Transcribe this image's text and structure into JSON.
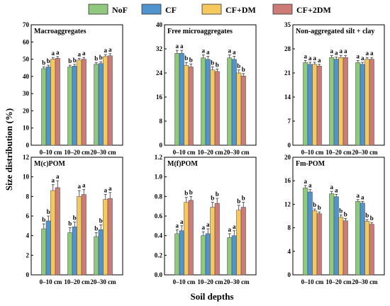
{
  "chart_data": {
    "type": "bar",
    "ylabel": "Size distribution (%)",
    "xlabel": "Soil depths",
    "categories": [
      "0–10 cm",
      "10–20 cm",
      "20–30 cm"
    ],
    "legend": {
      "placement": "top",
      "entries": [
        {
          "name": "NoF",
          "color": "#8fc97d"
        },
        {
          "name": "CF",
          "color": "#4f93cf"
        },
        {
          "name": "CF+DM",
          "color": "#f5c95e"
        },
        {
          "name": "CF+2DM",
          "color": "#cd7b76"
        }
      ]
    },
    "grid": false,
    "panels": [
      {
        "title": "Macroaggregates",
        "ylim": [
          0,
          70
        ],
        "yticks": [
          "0",
          "10",
          "20",
          "30",
          "40",
          "50",
          "60",
          "70"
        ],
        "values": [
          [
            44.5,
            45.5,
            50,
            50.5
          ],
          [
            45.5,
            46,
            49.5,
            50
          ],
          [
            47,
            47.5,
            51.5,
            52
          ]
        ],
        "errors": [
          [
            1,
            1,
            1,
            1
          ],
          [
            1,
            1,
            1,
            1
          ],
          [
            1,
            1,
            1.2,
            1.2
          ]
        ],
        "letters": [
          [
            "b",
            "b",
            "a",
            "a"
          ],
          [
            "b",
            "b",
            "a",
            "a"
          ],
          [
            "b",
            "b",
            "a",
            "a"
          ]
        ]
      },
      {
        "title": "Free microaggregates",
        "ylim": [
          0,
          40
        ],
        "yticks": [
          "0",
          "8",
          "16",
          "24",
          "32",
          "40"
        ],
        "values": [
          [
            30.5,
            30.5,
            26.5,
            26
          ],
          [
            29,
            28.5,
            25,
            24.5
          ],
          [
            29,
            28.5,
            24,
            23
          ]
        ],
        "errors": [
          [
            1,
            1,
            1,
            1
          ],
          [
            1,
            1,
            1,
            0.8
          ],
          [
            1,
            1,
            1,
            0.8
          ]
        ],
        "letters": [
          [
            "a",
            "a",
            "b",
            "b"
          ],
          [
            "a",
            "a",
            "b",
            "b"
          ],
          [
            "a",
            "a",
            "b",
            "b"
          ]
        ]
      },
      {
        "title": "Non-aggregated silt + clay",
        "ylim": [
          0,
          35
        ],
        "yticks": [
          "0",
          "7",
          "14",
          "21",
          "28",
          "35"
        ],
        "values": [
          [
            24,
            23.5,
            23.5,
            23
          ],
          [
            25.5,
            25,
            25.5,
            25.5
          ],
          [
            24,
            23.5,
            25,
            25
          ]
        ],
        "errors": [
          [
            0.6,
            0.6,
            0.6,
            0.5
          ],
          [
            0.6,
            0.6,
            0.6,
            0.6
          ],
          [
            0.6,
            0.6,
            0.5,
            0.5
          ]
        ],
        "letters": [
          [
            "a",
            "a",
            "a",
            "a"
          ],
          [
            "a",
            "a",
            "a",
            "a"
          ],
          [
            "a",
            "a",
            "a",
            "a"
          ]
        ]
      },
      {
        "title": "M(c)POM",
        "ylim": [
          0,
          12
        ],
        "yticks": [
          "0",
          "2",
          "4",
          "6",
          "8",
          "10",
          "12"
        ],
        "values": [
          [
            4.7,
            5.5,
            8.6,
            8.9
          ],
          [
            4.3,
            4.9,
            8,
            8.2
          ],
          [
            3.9,
            4.6,
            7.7,
            7.8
          ]
        ],
        "errors": [
          [
            0.5,
            0.5,
            0.6,
            0.7
          ],
          [
            0.5,
            0.5,
            0.6,
            0.5
          ],
          [
            0.4,
            0.5,
            0.5,
            0.6
          ]
        ],
        "letters": [
          [
            "b",
            "b",
            "a",
            "a"
          ],
          [
            "b",
            "b",
            "a",
            "a"
          ],
          [
            "b",
            "b",
            "a",
            "a"
          ]
        ]
      },
      {
        "title": "M(f)POM",
        "ylim": [
          0,
          1.2
        ],
        "yticks": [
          "0.0",
          "0.2",
          "0.4",
          "0.6",
          "0.8",
          "1.0",
          "1.2"
        ],
        "values": [
          [
            0.42,
            0.45,
            0.74,
            0.76
          ],
          [
            0.4,
            0.42,
            0.69,
            0.73
          ],
          [
            0.38,
            0.4,
            0.66,
            0.69
          ]
        ],
        "errors": [
          [
            0.04,
            0.05,
            0.05,
            0.04
          ],
          [
            0.04,
            0.05,
            0.05,
            0.05
          ],
          [
            0.04,
            0.05,
            0.05,
            0.05
          ]
        ],
        "letters": [
          [
            "a",
            "a",
            "b",
            "b"
          ],
          [
            "a",
            "a",
            "b",
            "b"
          ],
          [
            "a",
            "a",
            "b",
            "b"
          ]
        ]
      },
      {
        "title": "Fm-POM",
        "ylim": [
          0,
          20
        ],
        "yticks": [
          "0",
          "4",
          "8",
          "12",
          "16",
          "20"
        ],
        "values": [
          [
            14.8,
            14.1,
            10.9,
            10.4
          ],
          [
            13.8,
            13.3,
            9.8,
            9.2
          ],
          [
            12.5,
            12.2,
            9.1,
            8.6
          ]
        ],
        "errors": [
          [
            0.4,
            0.4,
            0.3,
            0.3
          ],
          [
            0.4,
            0.4,
            0.4,
            0.4
          ],
          [
            0.3,
            0.3,
            0.3,
            0.3
          ]
        ],
        "letters": [
          [
            "a",
            "a",
            "b",
            "b"
          ],
          [
            "a",
            "a",
            "b",
            "b"
          ],
          [
            "a",
            "a",
            "b",
            "b"
          ]
        ]
      }
    ]
  }
}
